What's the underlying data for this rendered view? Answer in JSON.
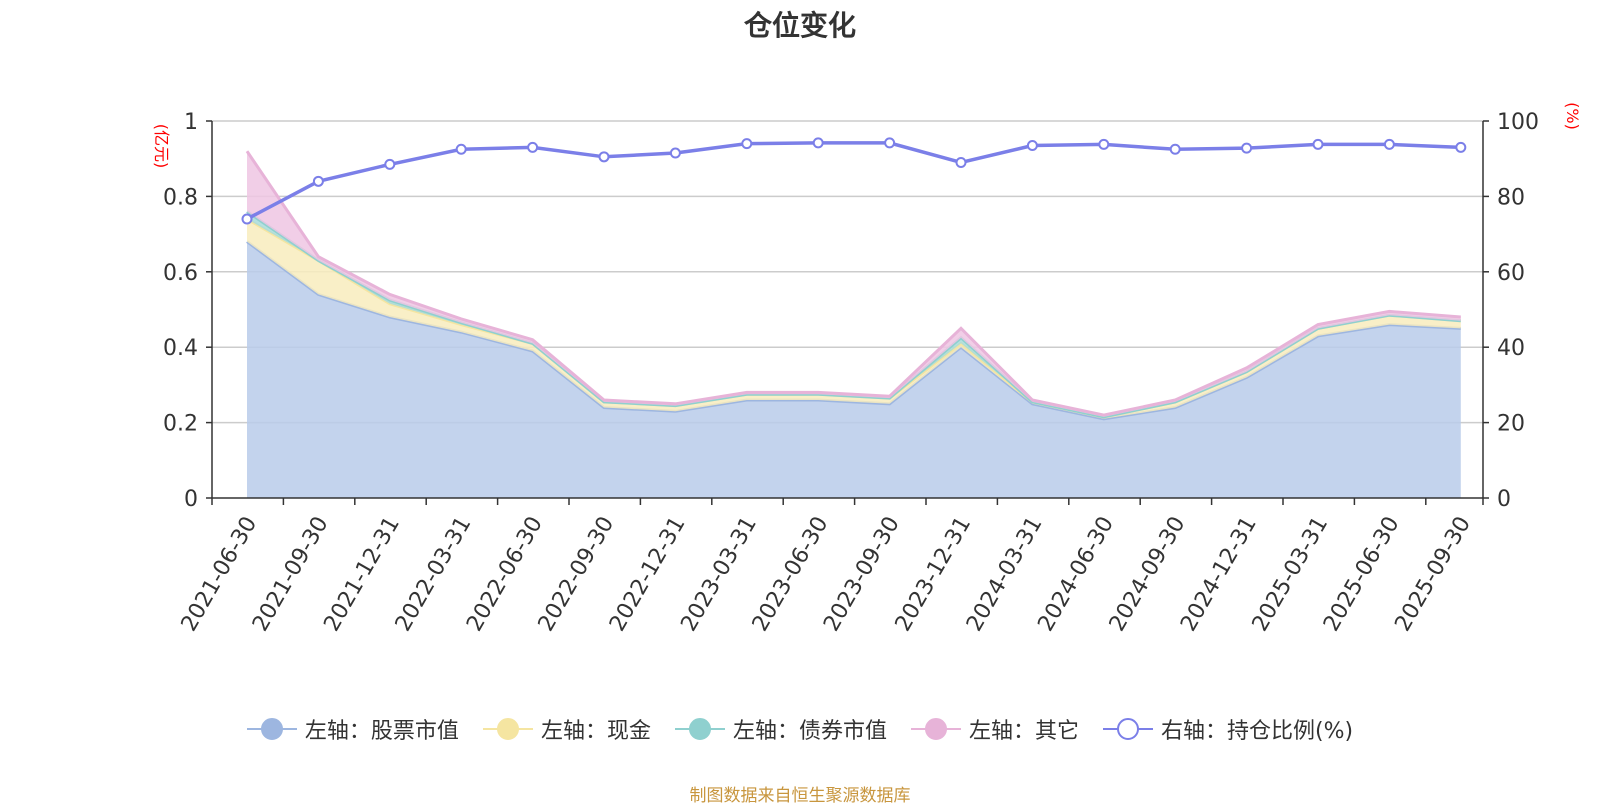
{
  "chart_data": {
    "type": "area",
    "title": "仓位变化",
    "categories": [
      "2021-06-30",
      "2021-09-30",
      "2021-12-31",
      "2022-03-31",
      "2022-06-30",
      "2022-09-30",
      "2022-12-31",
      "2023-03-31",
      "2023-06-30",
      "2023-09-30",
      "2023-12-31",
      "2024-03-31",
      "2024-06-30",
      "2024-09-30",
      "2024-12-31",
      "2025-03-31",
      "2025-06-30",
      "2025-09-30"
    ],
    "left_axis": {
      "unit": "(亿元)",
      "ylim": [
        0,
        1
      ],
      "ticks": [
        "0",
        "0.2",
        "0.4",
        "0.6",
        "0.8",
        "1"
      ]
    },
    "right_axis": {
      "unit": "(%)",
      "ylim": [
        0,
        100
      ],
      "ticks": [
        "0",
        "20",
        "40",
        "60",
        "80",
        "100"
      ]
    },
    "grid": true,
    "legend_position": "bottom",
    "stacked_series": [
      {
        "name": "左轴：股票市值",
        "color": "#9db6e0",
        "fill": "#b8cbea",
        "values": [
          0.68,
          0.54,
          0.48,
          0.44,
          0.39,
          0.24,
          0.23,
          0.26,
          0.26,
          0.25,
          0.4,
          0.25,
          0.21,
          0.24,
          0.32,
          0.43,
          0.46,
          0.45
        ]
      },
      {
        "name": "左轴：现金",
        "color": "#f5e5a1",
        "fill": "#f8ecbd",
        "values": [
          0.06,
          0.09,
          0.035,
          0.02,
          0.02,
          0.015,
          0.015,
          0.015,
          0.015,
          0.015,
          0.01,
          0.005,
          0.005,
          0.015,
          0.015,
          0.02,
          0.025,
          0.02
        ]
      },
      {
        "name": "左轴：债券市值",
        "color": "#8fd0cf",
        "fill": "#a8dcdb",
        "values": [
          0.02,
          0.0,
          0.01,
          0.005,
          0.0,
          0.0,
          0.0,
          0.0,
          0.0,
          0.0,
          0.015,
          0.0,
          0.0,
          0.0,
          0.0,
          0.0,
          0.0,
          0.0
        ]
      },
      {
        "name": "左轴：其它",
        "color": "#e7b3d8",
        "fill": "#efc6e3",
        "values": [
          0.16,
          0.01,
          0.015,
          0.01,
          0.01,
          0.005,
          0.005,
          0.005,
          0.005,
          0.005,
          0.025,
          0.005,
          0.005,
          0.005,
          0.01,
          0.01,
          0.01,
          0.01
        ]
      }
    ],
    "line_series": {
      "name": "右轴：持仓比例(%)",
      "color": "#7b7fe8",
      "values": [
        74,
        84,
        88.5,
        92.5,
        93,
        90.5,
        91.5,
        94,
        94.2,
        94.2,
        89,
        93.5,
        93.8,
        92.5,
        92.8,
        93.8,
        93.8,
        93
      ]
    }
  },
  "footer": {
    "source": "制图数据来自恒生聚源数据库"
  }
}
